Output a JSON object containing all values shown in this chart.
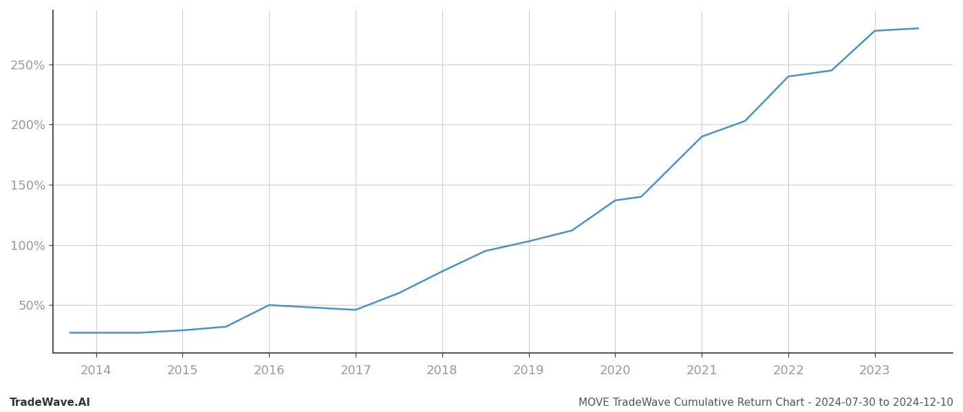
{
  "title": "",
  "footer_left": "TradeWave.AI",
  "footer_right": "MOVE TradeWave Cumulative Return Chart - 2024-07-30 to 2024-12-10",
  "line_color": "#4a90c4",
  "background_color": "#ffffff",
  "grid_color": "#cccccc",
  "x_years": [
    2013.7,
    2014.0,
    2014.5,
    2015.0,
    2015.5,
    2016.0,
    2016.5,
    2017.0,
    2017.5,
    2018.0,
    2018.5,
    2019.0,
    2019.5,
    2020.0,
    2020.3,
    2021.0,
    2021.5,
    2022.0,
    2022.5,
    2023.0,
    2023.5
  ],
  "y_values": [
    27,
    27,
    27,
    29,
    32,
    50,
    48,
    46,
    60,
    78,
    95,
    103,
    112,
    137,
    140,
    190,
    203,
    240,
    245,
    278,
    280
  ],
  "yticks": [
    50,
    100,
    150,
    200,
    250
  ],
  "ylim": [
    10,
    295
  ],
  "xlim": [
    2013.5,
    2023.9
  ],
  "xticks": [
    2014,
    2015,
    2016,
    2017,
    2018,
    2019,
    2020,
    2021,
    2022,
    2023
  ],
  "line_width": 1.8,
  "figsize": [
    14.0,
    6.0
  ],
  "dpi": 100,
  "tick_label_color": "#999999",
  "spine_color": "#333333",
  "footer_fontsize": 11,
  "tick_fontsize": 13
}
